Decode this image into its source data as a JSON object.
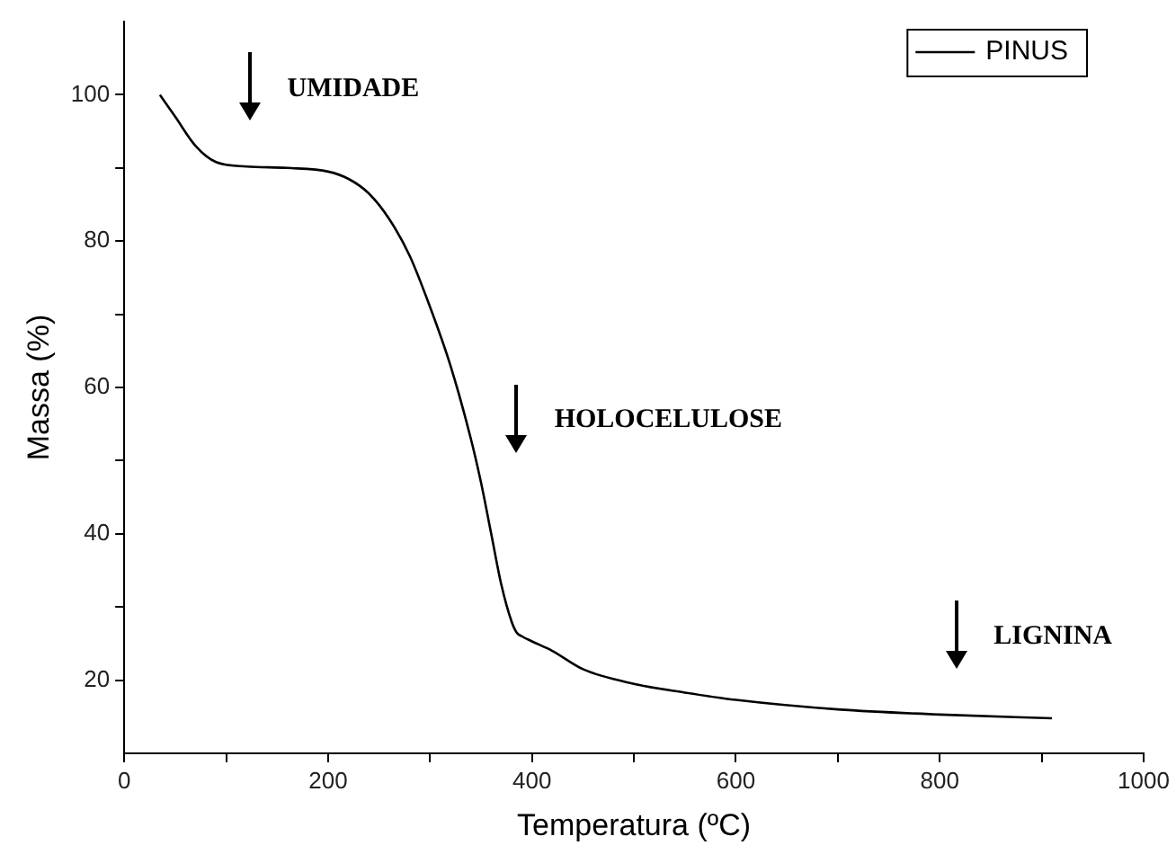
{
  "chart_data": {
    "type": "line",
    "xlabel": "Temperatura (ºC)",
    "ylabel": "Massa (%)",
    "x": [
      35,
      50,
      70,
      90,
      120,
      160,
      200,
      220,
      240,
      260,
      280,
      300,
      320,
      340,
      350,
      360,
      370,
      380,
      385,
      390,
      400,
      420,
      450,
      500,
      550,
      600,
      700,
      800,
      910
    ],
    "series": [
      {
        "name": "PINUS",
        "color": "#000000",
        "values": [
          100,
          97,
          93,
          90.8,
          90.2,
          90,
          89.5,
          88.5,
          86.5,
          83,
          78,
          71,
          63,
          53,
          47,
          40,
          33,
          28,
          26.5,
          26,
          25.3,
          24,
          21.5,
          19.5,
          18.3,
          17.3,
          16,
          15.3,
          14.8
        ]
      }
    ],
    "xlim": [
      0,
      1000
    ],
    "xticks": [
      0,
      {
        "value": 100,
        "label": null
      },
      200,
      {
        "value": 300,
        "label": null
      },
      400,
      {
        "value": 500,
        "label": null
      },
      600,
      {
        "value": 700,
        "label": null
      },
      800,
      {
        "value": 900,
        "label": null
      },
      1000
    ],
    "ylim": [
      10,
      110
    ],
    "yticks": [
      20,
      {
        "value": 30,
        "label": null
      },
      40,
      {
        "value": 50,
        "label": null
      },
      60,
      {
        "value": 70,
        "label": null
      },
      80,
      {
        "value": 90,
        "label": null
      },
      100
    ],
    "annotations": [
      "UMIDADE",
      "HOLOCELULOSE",
      "LIGNINA"
    ],
    "legend": "top right",
    "grid": false,
    "marker": "none",
    "line_style": "solid"
  }
}
